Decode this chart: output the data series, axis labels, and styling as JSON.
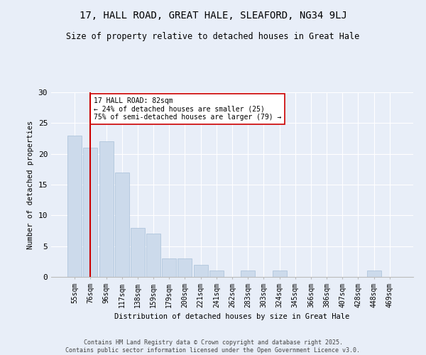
{
  "title": "17, HALL ROAD, GREAT HALE, SLEAFORD, NG34 9LJ",
  "subtitle": "Size of property relative to detached houses in Great Hale",
  "xlabel": "Distribution of detached houses by size in Great Hale",
  "ylabel": "Number of detached properties",
  "categories": [
    "55sqm",
    "76sqm",
    "96sqm",
    "117sqm",
    "138sqm",
    "159sqm",
    "179sqm",
    "200sqm",
    "221sqm",
    "241sqm",
    "262sqm",
    "283sqm",
    "303sqm",
    "324sqm",
    "345sqm",
    "366sqm",
    "386sqm",
    "407sqm",
    "428sqm",
    "448sqm",
    "469sqm"
  ],
  "values": [
    23,
    21,
    22,
    17,
    8,
    7,
    3,
    3,
    2,
    1,
    0,
    1,
    0,
    1,
    0,
    0,
    0,
    0,
    0,
    1,
    0
  ],
  "bar_color": "#ccdaeb",
  "bar_edge_color": "#a8c0d8",
  "vline_x_idx": 1,
  "vline_color": "#cc0000",
  "annotation_text": "17 HALL ROAD: 82sqm\n← 24% of detached houses are smaller (25)\n75% of semi-detached houses are larger (79) →",
  "annotation_box_facecolor": "#ffffff",
  "annotation_box_edgecolor": "#cc0000",
  "ylim": [
    0,
    30
  ],
  "yticks": [
    0,
    5,
    10,
    15,
    20,
    25,
    30
  ],
  "footer_line1": "Contains HM Land Registry data © Crown copyright and database right 2025.",
  "footer_line2": "Contains public sector information licensed under the Open Government Licence v3.0.",
  "bg_color": "#e8eef8",
  "plot_bg_color": "#e8eef8",
  "title_fontsize": 10,
  "subtitle_fontsize": 8.5,
  "axis_label_fontsize": 7.5,
  "tick_fontsize": 7,
  "annotation_fontsize": 7,
  "footer_fontsize": 6
}
